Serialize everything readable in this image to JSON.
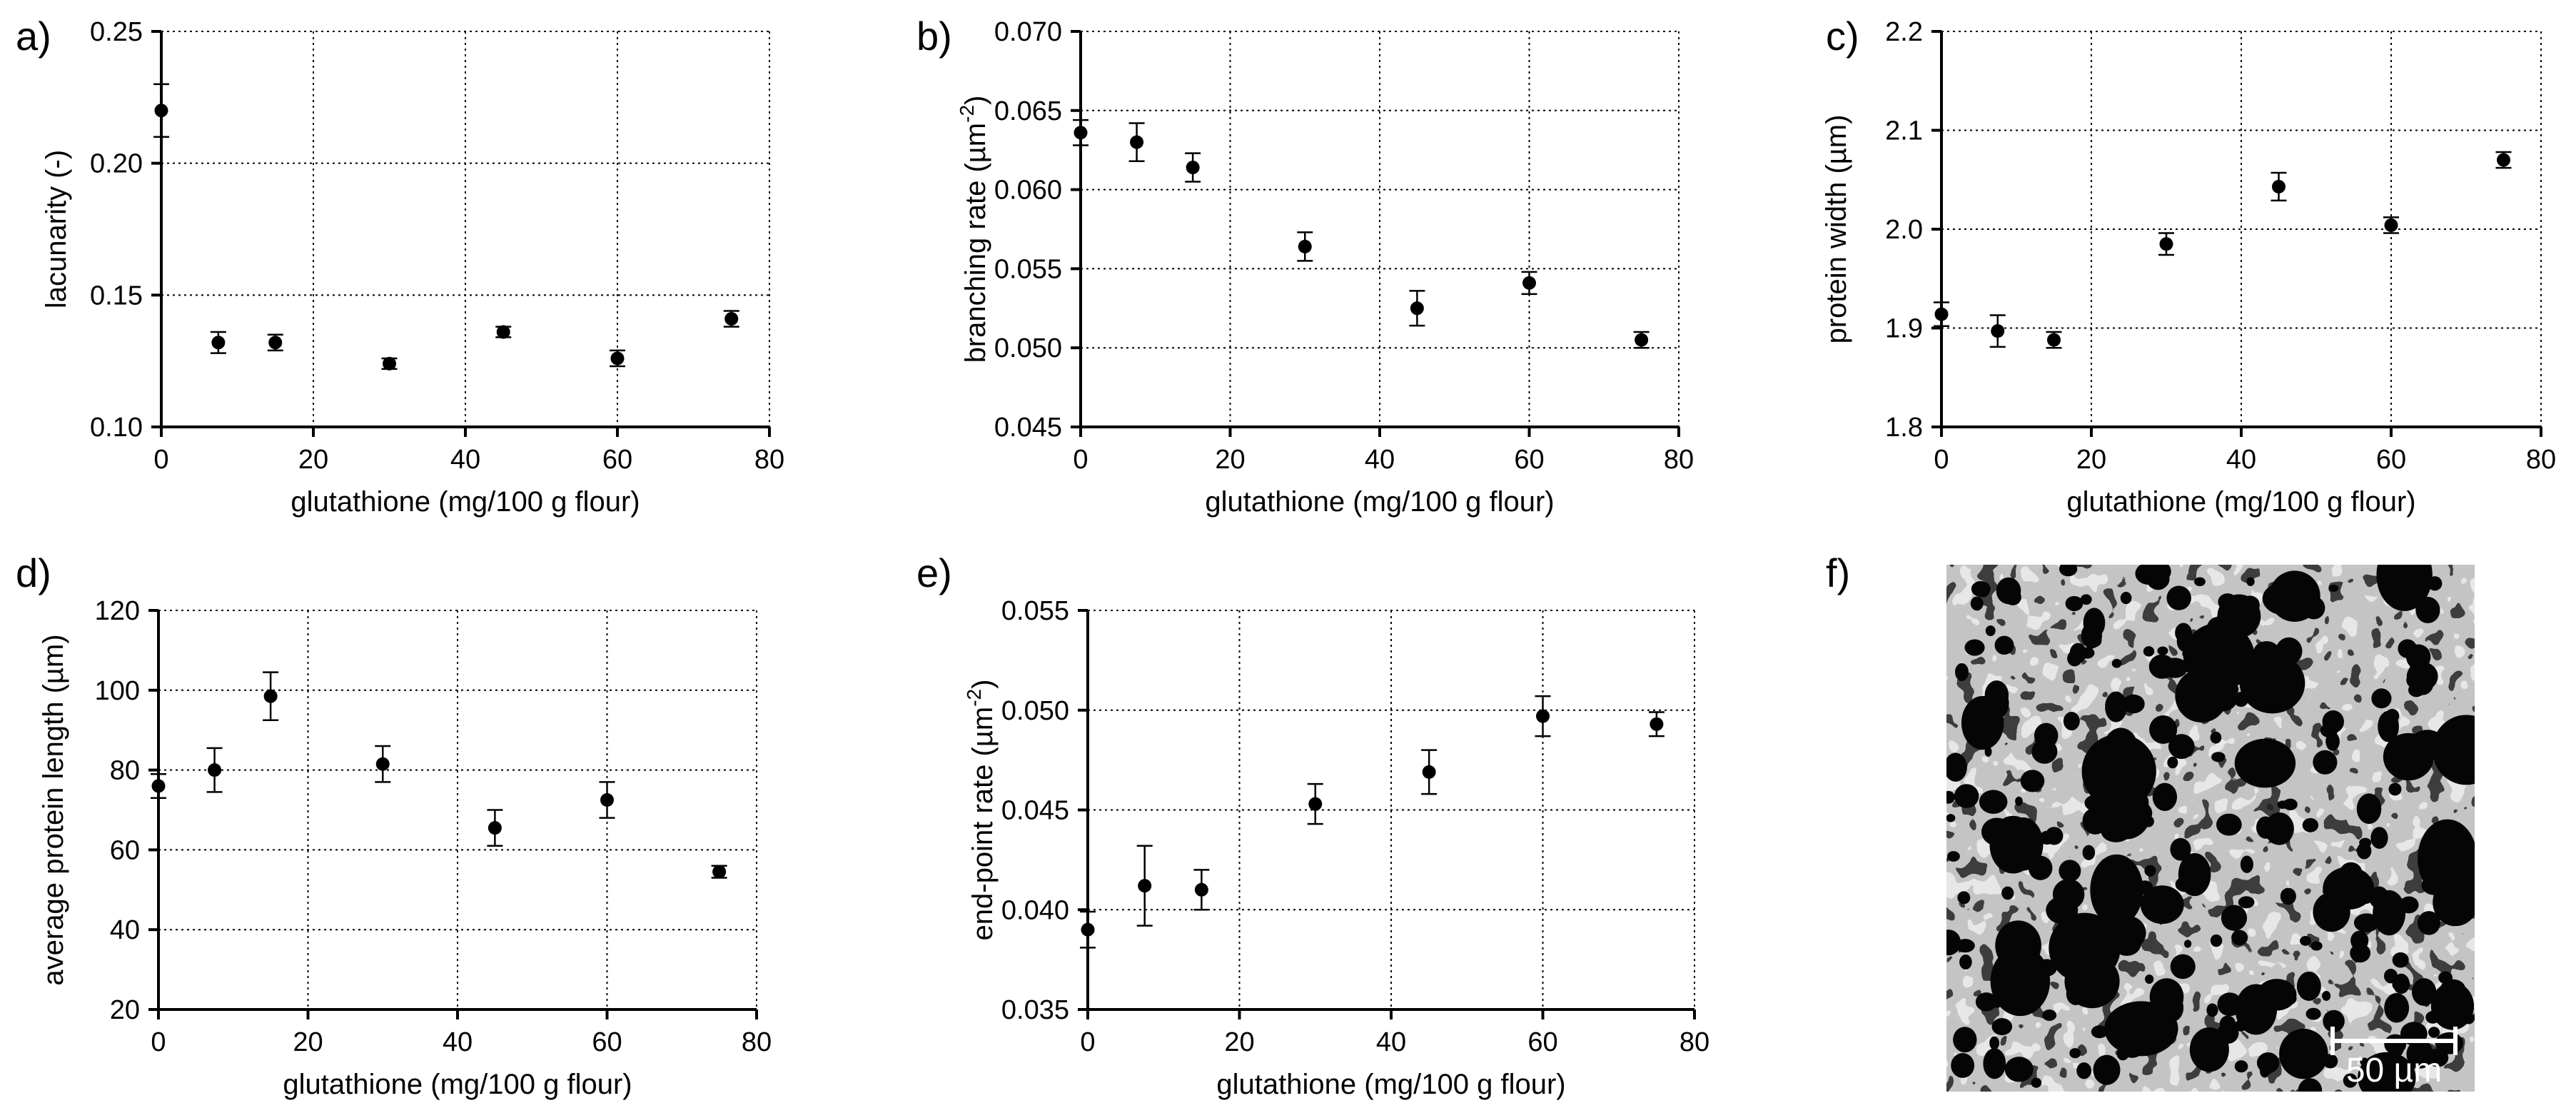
{
  "chart_data": [
    {
      "panel": "a)",
      "type": "scatter",
      "xlabel": "glutathione (mg/100 g flour)",
      "ylabel": "lacunarity (-)",
      "xlim": [
        0,
        80
      ],
      "ylim": [
        0.1,
        0.25
      ],
      "xticks": [
        "0",
        "20",
        "40",
        "60",
        "80"
      ],
      "yticks": [
        "0.10",
        "0.15",
        "0.20",
        "0.25"
      ],
      "grid": true,
      "points": [
        {
          "x": 0,
          "y": 0.22,
          "err": 0.01
        },
        {
          "x": 7.5,
          "y": 0.132,
          "err": 0.004
        },
        {
          "x": 15,
          "y": 0.132,
          "err": 0.003
        },
        {
          "x": 30,
          "y": 0.124,
          "err": 0.002
        },
        {
          "x": 45,
          "y": 0.136,
          "err": 0.002
        },
        {
          "x": 60,
          "y": 0.126,
          "err": 0.003
        },
        {
          "x": 75,
          "y": 0.141,
          "err": 0.003
        }
      ]
    },
    {
      "panel": "b)",
      "type": "scatter",
      "xlabel": "glutathione (mg/100 g flour)",
      "ylabel": "branching rate (µm",
      "ylabel_sup": "-2",
      "ylabel_end": ")",
      "xlim": [
        0,
        80
      ],
      "ylim": [
        0.045,
        0.07
      ],
      "xticks": [
        "0",
        "20",
        "40",
        "60",
        "80"
      ],
      "yticks": [
        "0.045",
        "0.050",
        "0.055",
        "0.060",
        "0.065",
        "0.070"
      ],
      "grid": true,
      "points": [
        {
          "x": 0,
          "y": 0.0636,
          "err": 0.0008
        },
        {
          "x": 7.5,
          "y": 0.063,
          "err": 0.0012
        },
        {
          "x": 15,
          "y": 0.0614,
          "err": 0.0009
        },
        {
          "x": 30,
          "y": 0.0564,
          "err": 0.0009
        },
        {
          "x": 45,
          "y": 0.0525,
          "err": 0.0011
        },
        {
          "x": 60,
          "y": 0.0541,
          "err": 0.0007
        },
        {
          "x": 75,
          "y": 0.0505,
          "err": 0.0005
        }
      ]
    },
    {
      "panel": "c)",
      "type": "scatter",
      "xlabel": "glutathione (mg/100 g flour)",
      "ylabel": "protein width (µm)",
      "xlim": [
        0,
        80
      ],
      "ylim": [
        1.8,
        2.2
      ],
      "xticks": [
        "0",
        "20",
        "40",
        "60",
        "80"
      ],
      "yticks": [
        "1.8",
        "1.9",
        "2.0",
        "2.1",
        "2.2"
      ],
      "grid": true,
      "points": [
        {
          "x": 0,
          "y": 1.914,
          "err": 0.012
        },
        {
          "x": 7.5,
          "y": 1.897,
          "err": 0.016
        },
        {
          "x": 15,
          "y": 1.888,
          "err": 0.008
        },
        {
          "x": 30,
          "y": 1.985,
          "err": 0.011
        },
        {
          "x": 45,
          "y": 2.043,
          "err": 0.014
        },
        {
          "x": 60,
          "y": 2.004,
          "err": 0.008
        },
        {
          "x": 75,
          "y": 2.07,
          "err": 0.008
        }
      ]
    },
    {
      "panel": "d)",
      "type": "scatter",
      "xlabel": "glutathione (mg/100 g flour)",
      "ylabel": "average protein length (µm)",
      "xlim": [
        0,
        80
      ],
      "ylim": [
        20,
        120
      ],
      "xticks": [
        "0",
        "20",
        "40",
        "60",
        "80"
      ],
      "yticks": [
        "20",
        "40",
        "60",
        "80",
        "100",
        "120"
      ],
      "grid": true,
      "points": [
        {
          "x": 0,
          "y": 76,
          "err": 3
        },
        {
          "x": 7.5,
          "y": 80,
          "err": 5.5
        },
        {
          "x": 15,
          "y": 98.5,
          "err": 6
        },
        {
          "x": 30,
          "y": 81.5,
          "err": 4.5
        },
        {
          "x": 45,
          "y": 65.5,
          "err": 4.5
        },
        {
          "x": 60,
          "y": 72.5,
          "err": 4.5
        },
        {
          "x": 75,
          "y": 54.5,
          "err": 1.5
        }
      ]
    },
    {
      "panel": "e)",
      "type": "scatter",
      "xlabel": "glutathione (mg/100 g flour)",
      "ylabel": "end-point rate (µm",
      "ylabel_sup": "-2",
      "ylabel_end": ")",
      "xlim": [
        0,
        80
      ],
      "ylim": [
        0.035,
        0.055
      ],
      "xticks": [
        "0",
        "20",
        "40",
        "60",
        "80"
      ],
      "yticks": [
        "0.035",
        "0.040",
        "0.045",
        "0.050",
        "0.055"
      ],
      "grid": true,
      "points": [
        {
          "x": 0,
          "y": 0.039,
          "err": 0.0009
        },
        {
          "x": 7.5,
          "y": 0.0412,
          "err": 0.002
        },
        {
          "x": 15,
          "y": 0.041,
          "err": 0.001
        },
        {
          "x": 30,
          "y": 0.0453,
          "err": 0.001
        },
        {
          "x": 45,
          "y": 0.0469,
          "err": 0.0011
        },
        {
          "x": 60,
          "y": 0.0497,
          "err": 0.001
        },
        {
          "x": 75,
          "y": 0.0493,
          "err": 0.0006
        }
      ]
    }
  ],
  "micrograph": {
    "panel": "f)",
    "scale_bar_label": "50 µm"
  }
}
